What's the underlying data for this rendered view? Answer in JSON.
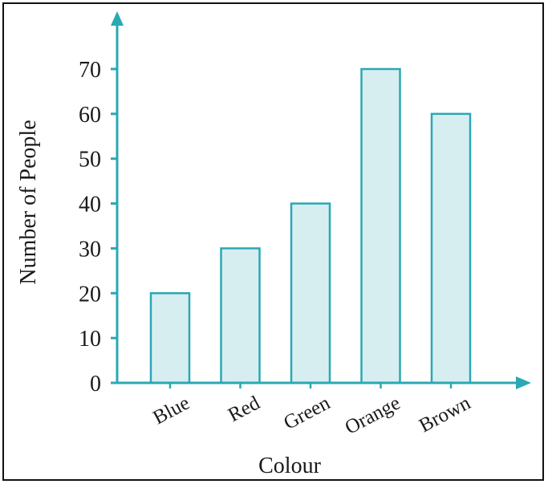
{
  "chart_data": {
    "type": "bar",
    "title": "",
    "xlabel": "Colour",
    "ylabel": "Number of People",
    "categories": [
      "Blue",
      "Red",
      "Green",
      "Orange",
      "Brown"
    ],
    "values": [
      20,
      30,
      40,
      70,
      60
    ],
    "yticks": [
      "0",
      "10",
      "20",
      "30",
      "40",
      "50",
      "60",
      "70"
    ],
    "ylim": [
      0,
      70
    ],
    "grid": false,
    "legend": "none",
    "colors": {
      "axis": "#2aa8b4",
      "bar_fill": "#d7eef1",
      "bar_stroke": "#2aa8b4"
    }
  }
}
